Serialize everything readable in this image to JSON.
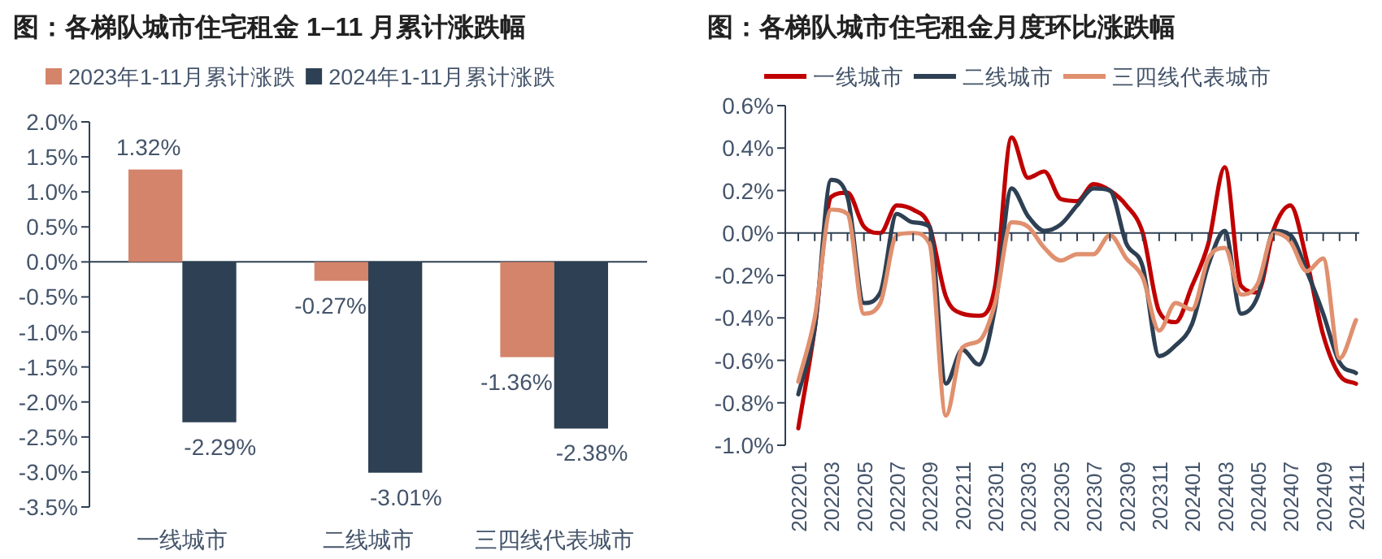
{
  "chart_data": [
    {
      "type": "bar",
      "title": "图：各梯队城市住宅租金 1–11 月累计涨跌幅",
      "categories": [
        "一线城市",
        "二线城市",
        "三四线代表城市"
      ],
      "series": [
        {
          "name": "2023年1-11月累计涨跌",
          "color": "#d4846a",
          "values": [
            1.32,
            -0.27,
            -1.36
          ]
        },
        {
          "name": "2024年1-11月累计涨跌",
          "color": "#2e4053",
          "values": [
            -2.29,
            -3.01,
            -2.38
          ]
        }
      ],
      "ylim": [
        -3.5,
        2.0
      ],
      "yticks": [
        {
          "value": 2.0,
          "label": "2.0%"
        },
        {
          "value": 1.5,
          "label": "1.5%"
        },
        {
          "value": 1.0,
          "label": "1.0%"
        },
        {
          "value": 0.5,
          "label": "0.5%"
        },
        {
          "value": 0,
          "label": "0.0%"
        },
        {
          "value": -0.5,
          "label": "-0.5%"
        },
        {
          "value": -1.0,
          "label": "-1.0%"
        },
        {
          "value": -1.5,
          "label": "-1.5%"
        },
        {
          "value": -2.0,
          "label": "-2.0%"
        },
        {
          "value": -2.5,
          "label": "-2.5%"
        },
        {
          "value": -3.0,
          "label": "-3.0%"
        },
        {
          "value": -3.5,
          "label": "-3.5%"
        }
      ],
      "value_labels": [
        [
          "1.32%",
          "-0.27%",
          "-1.36%"
        ],
        [
          "-2.29%",
          "-3.01%",
          "-2.38%"
        ]
      ],
      "legend": "top"
    },
    {
      "type": "line",
      "title": "图：各梯队城市住宅租金月度环比涨跌幅",
      "categories": [
        "202201",
        null,
        "202203",
        null,
        "202205",
        null,
        "202207",
        null,
        "202209",
        null,
        "202211",
        null,
        "202301",
        null,
        "202303",
        null,
        "202305",
        null,
        "202307",
        null,
        "202309",
        null,
        "202311",
        null,
        "202401",
        null,
        "202403",
        null,
        "202405",
        null,
        "202407",
        null,
        "202409",
        null,
        "202411"
      ],
      "series": [
        {
          "name": "一线城市",
          "color": "#c00000",
          "values": [
            -0.92,
            -0.45,
            0.17,
            0.19,
            0.03,
            0.0,
            0.13,
            0.11,
            0.03,
            -0.3,
            -0.38,
            -0.39,
            -0.25,
            0.45,
            0.26,
            0.29,
            0.16,
            0.15,
            0.23,
            0.2,
            0.13,
            0.0,
            -0.37,
            -0.42,
            -0.25,
            -0.05,
            0.31,
            -0.25,
            -0.28,
            0.02,
            0.13,
            -0.13,
            -0.48,
            -0.67,
            -0.71
          ]
        },
        {
          "name": "二线城市",
          "color": "#2e4053",
          "values": [
            -0.76,
            -0.45,
            0.25,
            0.17,
            -0.33,
            -0.28,
            0.09,
            0.05,
            0.03,
            -0.71,
            -0.55,
            -0.62,
            -0.35,
            0.21,
            0.08,
            0.01,
            0.04,
            0.13,
            0.21,
            0.2,
            -0.05,
            -0.16,
            -0.58,
            -0.53,
            -0.43,
            -0.15,
            0.01,
            -0.38,
            -0.3,
            0.01,
            -0.01,
            -0.18,
            -0.38,
            -0.61,
            -0.66
          ]
        },
        {
          "name": "三四线代表城市",
          "color": "#e0906e",
          "values": [
            -0.7,
            -0.4,
            0.11,
            0.09,
            -0.38,
            -0.33,
            -0.01,
            0.0,
            -0.05,
            -0.86,
            -0.54,
            -0.51,
            -0.33,
            0.05,
            0.03,
            -0.07,
            -0.13,
            -0.1,
            -0.1,
            -0.01,
            -0.12,
            -0.21,
            -0.46,
            -0.33,
            -0.36,
            -0.12,
            -0.07,
            -0.29,
            -0.24,
            0.0,
            -0.04,
            -0.18,
            -0.12,
            -0.59,
            -0.41
          ]
        }
      ],
      "ylim": [
        -1.0,
        0.6
      ],
      "yticks": [
        {
          "value": 0.6,
          "label": "0.6%"
        },
        {
          "value": 0.4,
          "label": "0.4%"
        },
        {
          "value": 0.2,
          "label": "0.2%"
        },
        {
          "value": 0,
          "label": "0.0%"
        },
        {
          "value": -0.2,
          "label": "-0.2%"
        },
        {
          "value": -0.4,
          "label": "-0.4%"
        },
        {
          "value": -0.6,
          "label": "-0.6%"
        },
        {
          "value": -0.8,
          "label": "-0.8%"
        },
        {
          "value": -1.0,
          "label": "-1.0%"
        }
      ],
      "legend": "top",
      "marker": "none",
      "line_style": "solid"
    }
  ]
}
